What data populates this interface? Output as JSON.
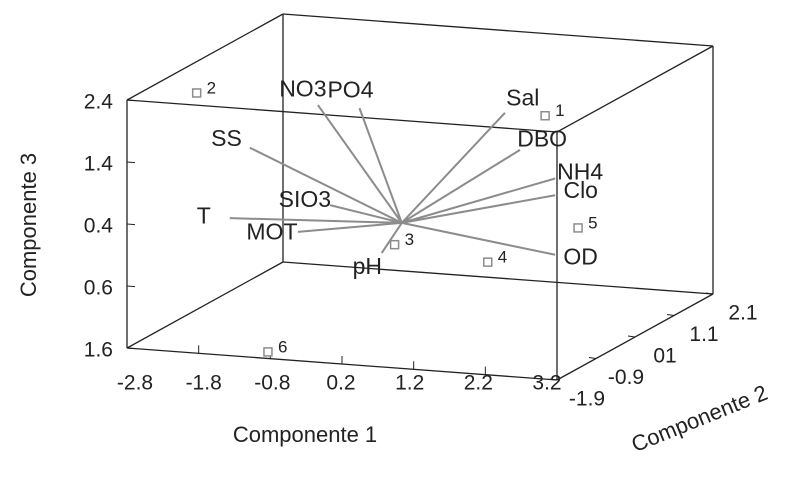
{
  "chart_data": {
    "type": "biplot3d",
    "xlabel": "Componente 1",
    "ylabel": "Componente 2",
    "zlabel": "Componente 3",
    "xlim": [
      -2.8,
      3.2
    ],
    "ylim": [
      -1.9,
      2.1
    ],
    "zlim": [
      -1.6,
      2.4
    ],
    "xticks": [
      -2.8,
      -1.8,
      -0.8,
      0.2,
      1.2,
      2.2,
      3.2
    ],
    "yticks": [
      -1.9,
      -0.9,
      {
        "value": 0.1,
        "label": "01"
      },
      1.1,
      2.1
    ],
    "zticks": [
      {
        "value": -1.6,
        "label": "1.6"
      },
      {
        "value": -0.6,
        "label": "0.6"
      },
      0.4,
      1.4,
      2.4
    ],
    "color": "#8c8c8c",
    "loadings": [
      {
        "name": "T",
        "x": -2.4,
        "y": 0,
        "z": -0.13
      },
      {
        "name": "SS",
        "x": -2.12,
        "y": 0,
        "z": 1.03
      },
      {
        "name": "NO3",
        "x": -1.17,
        "y": 0,
        "z": 1.8
      },
      {
        "name": "PO4",
        "x": -0.59,
        "y": 0,
        "z": 1.8
      },
      {
        "name": "Sal",
        "x": 1.44,
        "y": 0,
        "z": 1.9
      },
      {
        "name": "DBO",
        "x": 1.65,
        "y": 0,
        "z": 1.32
      },
      {
        "name": "NH4",
        "x": 2.14,
        "y": 0,
        "z": 0.9
      },
      {
        "name": "Clo",
        "x": 2.14,
        "y": 0,
        "z": 0.63
      },
      {
        "name": "OD",
        "x": 2.14,
        "y": 0,
        "z": -0.33
      },
      {
        "name": "SIO3",
        "x": -1.0,
        "y": 0,
        "z": 0.2
      },
      {
        "name": "MOT",
        "x": -1.45,
        "y": 0,
        "z": -0.27
      },
      {
        "name": "pH",
        "x": -0.28,
        "y": 0,
        "z": -0.51
      }
    ],
    "scores": [
      {
        "name": "1",
        "x": 2.0,
        "y": 0,
        "z": 1.9
      },
      {
        "name": "2",
        "x": -2.1,
        "y": -1.4,
        "z": 2.4
      },
      {
        "name": "3",
        "x": -0.1,
        "y": 0,
        "z": -0.36
      },
      {
        "name": "4",
        "x": 1.2,
        "y": 0,
        "z": -0.53
      },
      {
        "name": "5",
        "x": 2.46,
        "y": 0,
        "z": 0.13
      },
      {
        "name": "6",
        "x": -0.98,
        "y": -1.63,
        "z": -1.6
      }
    ]
  }
}
